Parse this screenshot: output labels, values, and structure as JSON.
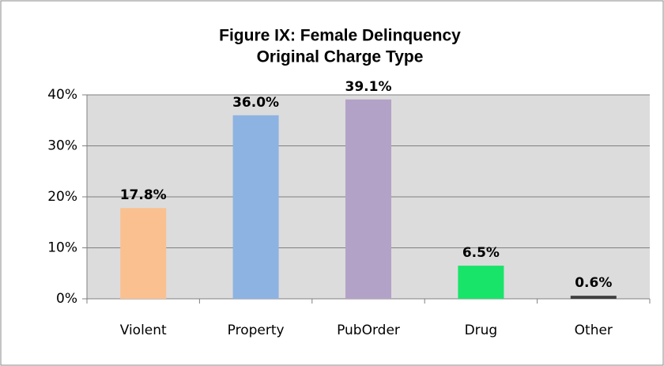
{
  "chart_data": {
    "type": "bar",
    "title": [
      "Figure IX: Female Delinquency",
      "Original Charge Type"
    ],
    "categories": [
      "Violent",
      "Property",
      "PubOrder",
      "Drug",
      "Other"
    ],
    "values": [
      17.8,
      36.0,
      39.1,
      6.5,
      0.6
    ],
    "value_labels": [
      "17.8%",
      "36.0%",
      "39.1%",
      "6.5%",
      "0.6%"
    ],
    "colors": [
      "#fac090",
      "#8db3e2",
      "#b3a2c7",
      "#19e46a",
      "#404040"
    ],
    "ylim": [
      0,
      40
    ],
    "yticks": [
      {
        "value": 0,
        "label": "0%"
      },
      {
        "value": 10,
        "label": "10%"
      },
      {
        "value": 20,
        "label": "20%"
      },
      {
        "value": 30,
        "label": "30%"
      },
      {
        "value": 40,
        "label": "40%"
      }
    ],
    "grid": true
  }
}
